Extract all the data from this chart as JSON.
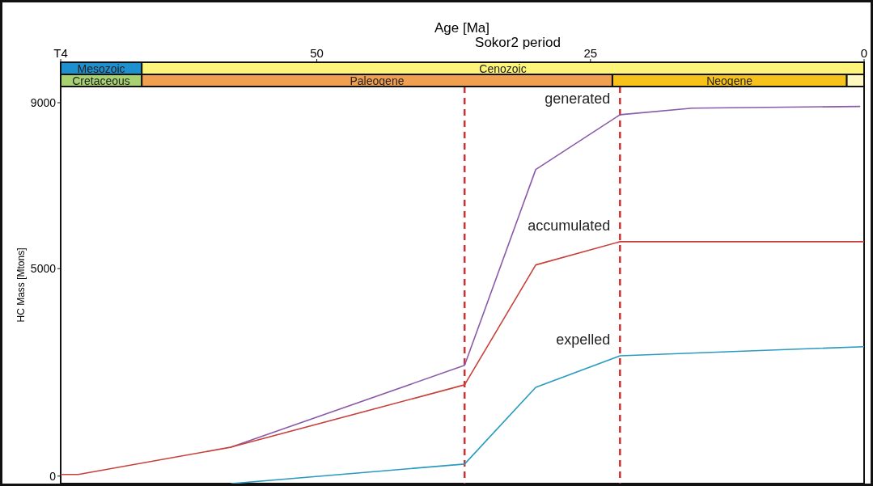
{
  "chart_data": [
    {
      "type": "line",
      "xlabel": "Age [Ma]",
      "ylabel": "HC Mass [Mtons]",
      "xlim": [
        73.4,
        0
      ],
      "xticks": [
        {
          "value": 73.4,
          "label": "T4"
        },
        50,
        25,
        0
      ],
      "ylim": [
        -180,
        9390
      ],
      "yticks": [
        0,
        5000,
        9000
      ],
      "grid": false,
      "marker": "none",
      "line_style": "solid",
      "series": [
        {
          "name": "generated",
          "color": "#8a5aa8",
          "x": [
            57.8,
            36.5,
            30.0,
            22.3,
            15.7,
            0.4
          ],
          "values": [
            700,
            2670,
            7390,
            8710,
            8870,
            8910
          ]
        },
        {
          "name": "accumulated",
          "color": "#c8403a",
          "x": [
            73.4,
            71.8,
            57.8,
            36.5,
            30.0,
            22.3,
            0
          ],
          "values": [
            40,
            40,
            700,
            2200,
            5090,
            5650,
            5650
          ]
        },
        {
          "name": "expelled",
          "color": "#2a9ac0",
          "x": [
            57.8,
            36.5,
            30.0,
            22.3,
            0
          ],
          "values": [
            -180,
            290,
            2140,
            2900,
            3120
          ]
        }
      ],
      "ref_lines": [
        {
          "axis": "x",
          "value": 36.5,
          "color": "#d03030",
          "line_style": "dashed"
        },
        {
          "axis": "x",
          "value": 22.3,
          "color": "#d03030",
          "line_style": "dashed"
        }
      ]
    },
    {
      "type": "bar",
      "title": "Sokor2 period",
      "orientation": "horizontal",
      "stacked": true,
      "categories": [
        null,
        null
      ],
      "xlim": [
        73.4,
        0
      ],
      "tick_labels": false,
      "series": [
        {
          "colors": [
            "#fff47a",
            "#fff8c0"
          ],
          "values": [
            66,
            1.6
          ],
          "value_labels": [
            "Cenozoic",
            null
          ]
        },
        {
          "colors": [
            "#1e90d0",
            "#f7c21a"
          ],
          "values": [
            7.4,
            21.4
          ],
          "value_labels": [
            "Mesozoic",
            "Neogene"
          ]
        },
        {
          "colors": [
            null,
            "#f0a050"
          ],
          "values": [
            null,
            43
          ],
          "value_labels": [
            null,
            "Paleogene"
          ]
        },
        {
          "colors": [
            null,
            "#a8d272"
          ],
          "values": [
            null,
            7.4
          ],
          "value_labels": [
            null,
            "Cretaceous"
          ]
        }
      ]
    }
  ]
}
